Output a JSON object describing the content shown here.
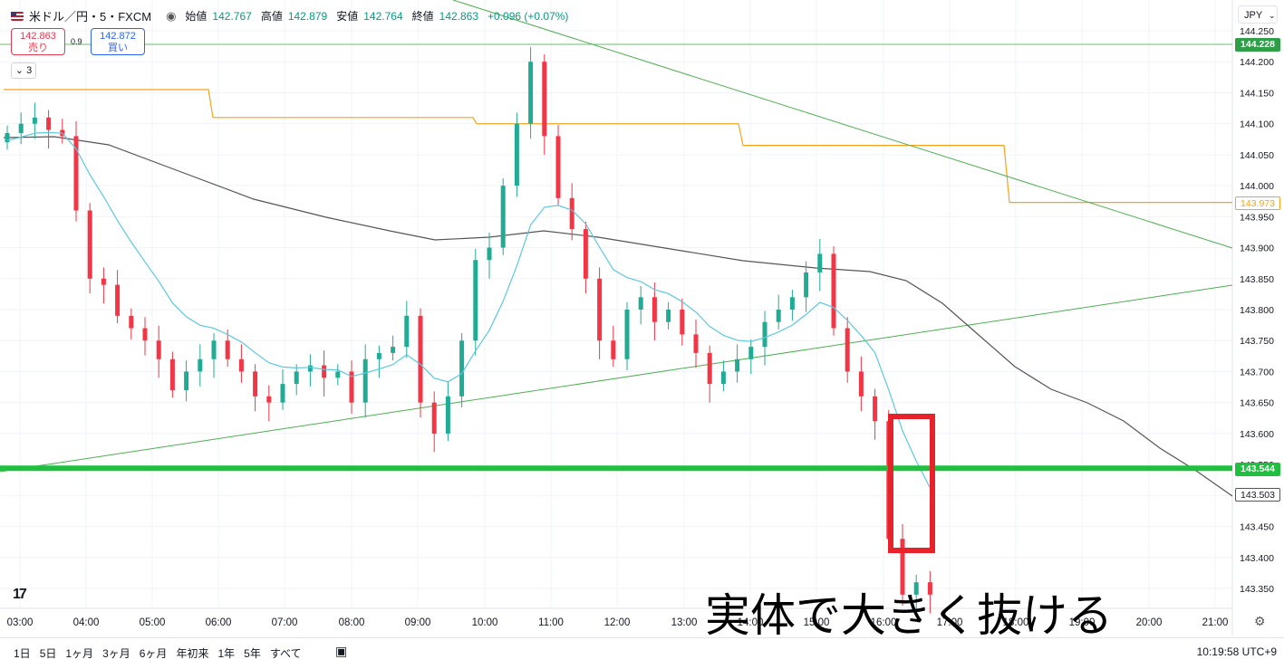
{
  "header": {
    "symbol": "米ドル／円・5・FXCM",
    "open_label": "始値",
    "open": "142.767",
    "high_label": "高値",
    "high": "142.879",
    "low_label": "安値",
    "low": "142.764",
    "close_label": "終値",
    "close": "142.863",
    "change": "+0.096 (+0.07%)"
  },
  "trade": {
    "sell_price": "142.863",
    "sell_label": "売り",
    "spread": "0.9",
    "buy_price": "142.872",
    "buy_label": "買い"
  },
  "indicator_toggle": "3",
  "currency": "JPY",
  "chart_data": {
    "type": "candlestick",
    "y_ticks": [
      "144.250",
      "144.200",
      "144.150",
      "144.100",
      "144.050",
      "144.000",
      "143.950",
      "143.900",
      "143.850",
      "143.800",
      "143.750",
      "143.700",
      "143.650",
      "143.600",
      "143.550",
      "143.500",
      "143.450",
      "143.400",
      "143.350"
    ],
    "x_ticks": [
      "03:00",
      "04:00",
      "05:00",
      "06:00",
      "07:00",
      "08:00",
      "09:00",
      "10:00",
      "11:00",
      "12:00",
      "13:00",
      "14:00",
      "15:00",
      "16:00",
      "17:00",
      "18:00",
      "19:00",
      "20:00",
      "21:00"
    ],
    "ylim": [
      143.32,
      144.27
    ],
    "price_labels": [
      "144.228",
      "143.973",
      "143.544",
      "143.503"
    ],
    "colors": {
      "up": "#22ab94",
      "down": "#f23645",
      "ma_fast": "#5bc8e0",
      "ma_slow": "#555555",
      "orange": "#f7a21b",
      "trend": "#4caf50",
      "support": "#1fbf3f"
    },
    "close": [
      144.085,
      144.1,
      144.11,
      144.09,
      144.08,
      143.96,
      143.85,
      143.84,
      143.79,
      143.77,
      143.75,
      143.72,
      143.67,
      143.7,
      143.72,
      143.75,
      143.72,
      143.7,
      143.66,
      143.65,
      143.68,
      143.7,
      143.71,
      143.69,
      143.7,
      143.65,
      143.72,
      143.73,
      143.74,
      143.79,
      143.65,
      143.6,
      143.66,
      143.75,
      143.88,
      143.9,
      144.0,
      144.1,
      144.2,
      144.08,
      143.98,
      143.93,
      143.85,
      143.75,
      143.72,
      143.8,
      143.82,
      143.78,
      143.8,
      143.76,
      143.73,
      143.68,
      143.7,
      143.72,
      143.74,
      143.78,
      143.8,
      143.82,
      143.86,
      143.89,
      143.77,
      143.7,
      143.66,
      143.62,
      143.43,
      143.34,
      143.36,
      143.34
    ]
  },
  "annotation": "実体で大きく抜ける",
  "bottom_bar": {
    "ranges": [
      "1日",
      "5日",
      "1ヶ月",
      "3ヶ月",
      "6ヶ月",
      "年初来",
      "1年",
      "5年",
      "すべて"
    ],
    "time": "10:19:58 UTC+9"
  }
}
